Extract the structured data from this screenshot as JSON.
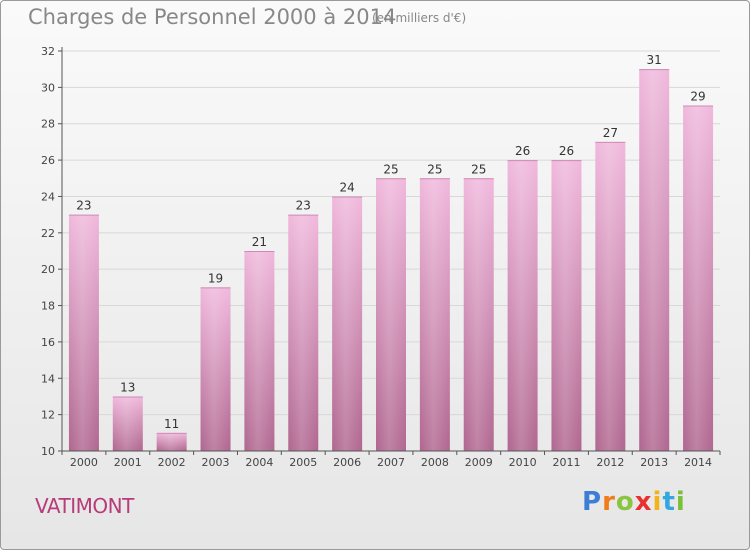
{
  "header": {
    "title": "Charges de Personnel 2000 à 2014",
    "subtitle": "(en milliers d'€)"
  },
  "commune": "VATIMONT",
  "logo": {
    "text": "Proxiti",
    "letter_colors": [
      "#3a7fd5",
      "#f07c1a",
      "#8bc43f",
      "#e8312f",
      "#f2b21a",
      "#35a7e0",
      "#7bbf3a"
    ]
  },
  "colors": {
    "bar_light": "#f0b8dc",
    "bar_dark": "#b0668f",
    "axis": "#555555",
    "grid": "#d8d8d8"
  },
  "chart_data": {
    "type": "bar",
    "title": "Charges de Personnel 2000 à 2014",
    "subtitle": "(en milliers d'€)",
    "categories": [
      "2000",
      "2001",
      "2002",
      "2003",
      "2004",
      "2005",
      "2006",
      "2007",
      "2008",
      "2009",
      "2010",
      "2011",
      "2012",
      "2013",
      "2014"
    ],
    "values": [
      23,
      13,
      11,
      19,
      21,
      23,
      24,
      25,
      25,
      25,
      26,
      26,
      27,
      31,
      29
    ],
    "ylim": [
      10,
      32
    ],
    "yticks": [
      10,
      12,
      14,
      16,
      18,
      20,
      22,
      24,
      26,
      28,
      30,
      32
    ],
    "grid": true,
    "legend": "none"
  }
}
